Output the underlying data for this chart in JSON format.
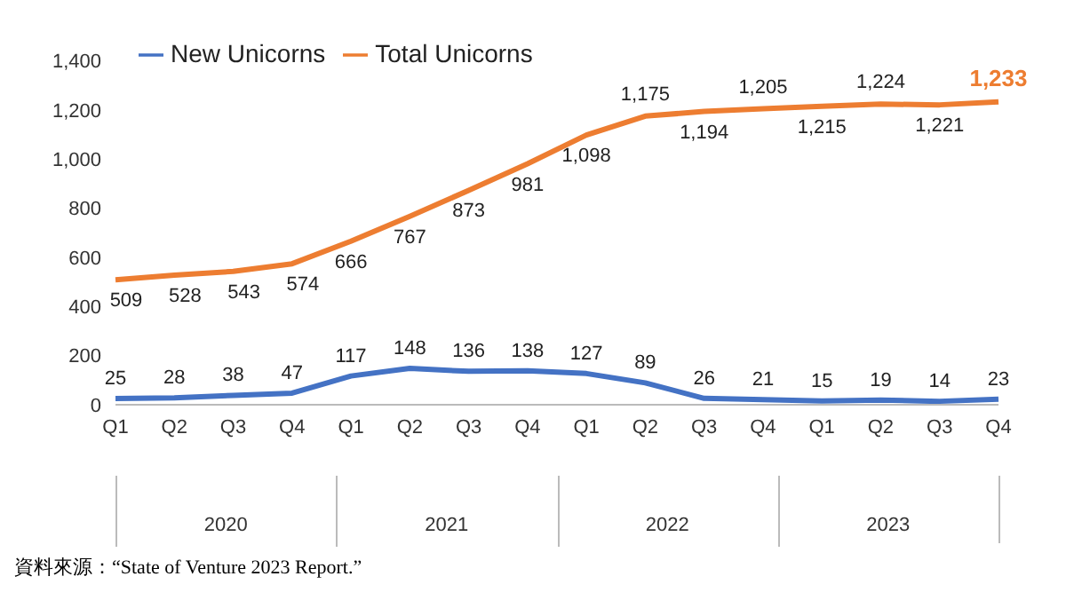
{
  "chart_data": {
    "type": "line",
    "categories": [
      "Q1",
      "Q2",
      "Q3",
      "Q4",
      "Q1",
      "Q2",
      "Q3",
      "Q4",
      "Q1",
      "Q2",
      "Q3",
      "Q4",
      "Q1",
      "Q2",
      "Q3",
      "Q4"
    ],
    "series": [
      {
        "name": "New Unicorns",
        "color": "#4472c4",
        "values": [
          25,
          28,
          38,
          47,
          117,
          148,
          136,
          138,
          127,
          89,
          26,
          21,
          15,
          19,
          14,
          23
        ],
        "value_labels": [
          "25",
          "28",
          "38",
          "47",
          "117",
          "148",
          "136",
          "138",
          "127",
          "89",
          "26",
          "21",
          "15",
          "19",
          "14",
          "23"
        ]
      },
      {
        "name": "Total Unicorns",
        "color": "#ed7d31",
        "values": [
          509,
          528,
          543,
          574,
          666,
          767,
          873,
          981,
          1098,
          1175,
          1194,
          1205,
          1215,
          1224,
          1221,
          1233
        ],
        "value_labels": [
          "509",
          "528",
          "543",
          "574",
          "666",
          "767",
          "873",
          "981",
          "1,098",
          "1,175",
          "1,194",
          "1,205",
          "1,215",
          "1,224",
          "1,221",
          "1,233"
        ]
      }
    ],
    "ylim": [
      0,
      1400
    ],
    "yticks": [
      0,
      {
        "value": 200,
        "label": "200"
      },
      {
        "value": 400,
        "label": "400"
      },
      {
        "value": 600,
        "label": "600"
      },
      {
        "value": 800,
        "label": "800"
      },
      {
        "value": 1000,
        "label": "1,000"
      },
      {
        "value": 1200,
        "label": "1,200"
      },
      {
        "value": 1400,
        "label": "1,400"
      }
    ],
    "grid": false,
    "legend": "top left",
    "marker": "none",
    "line_style": "solid",
    "annotations": [
      "2020",
      "2021",
      "2022",
      "2023",
      "資料來源：“State of Venture 2023 Report.”"
    ]
  }
}
